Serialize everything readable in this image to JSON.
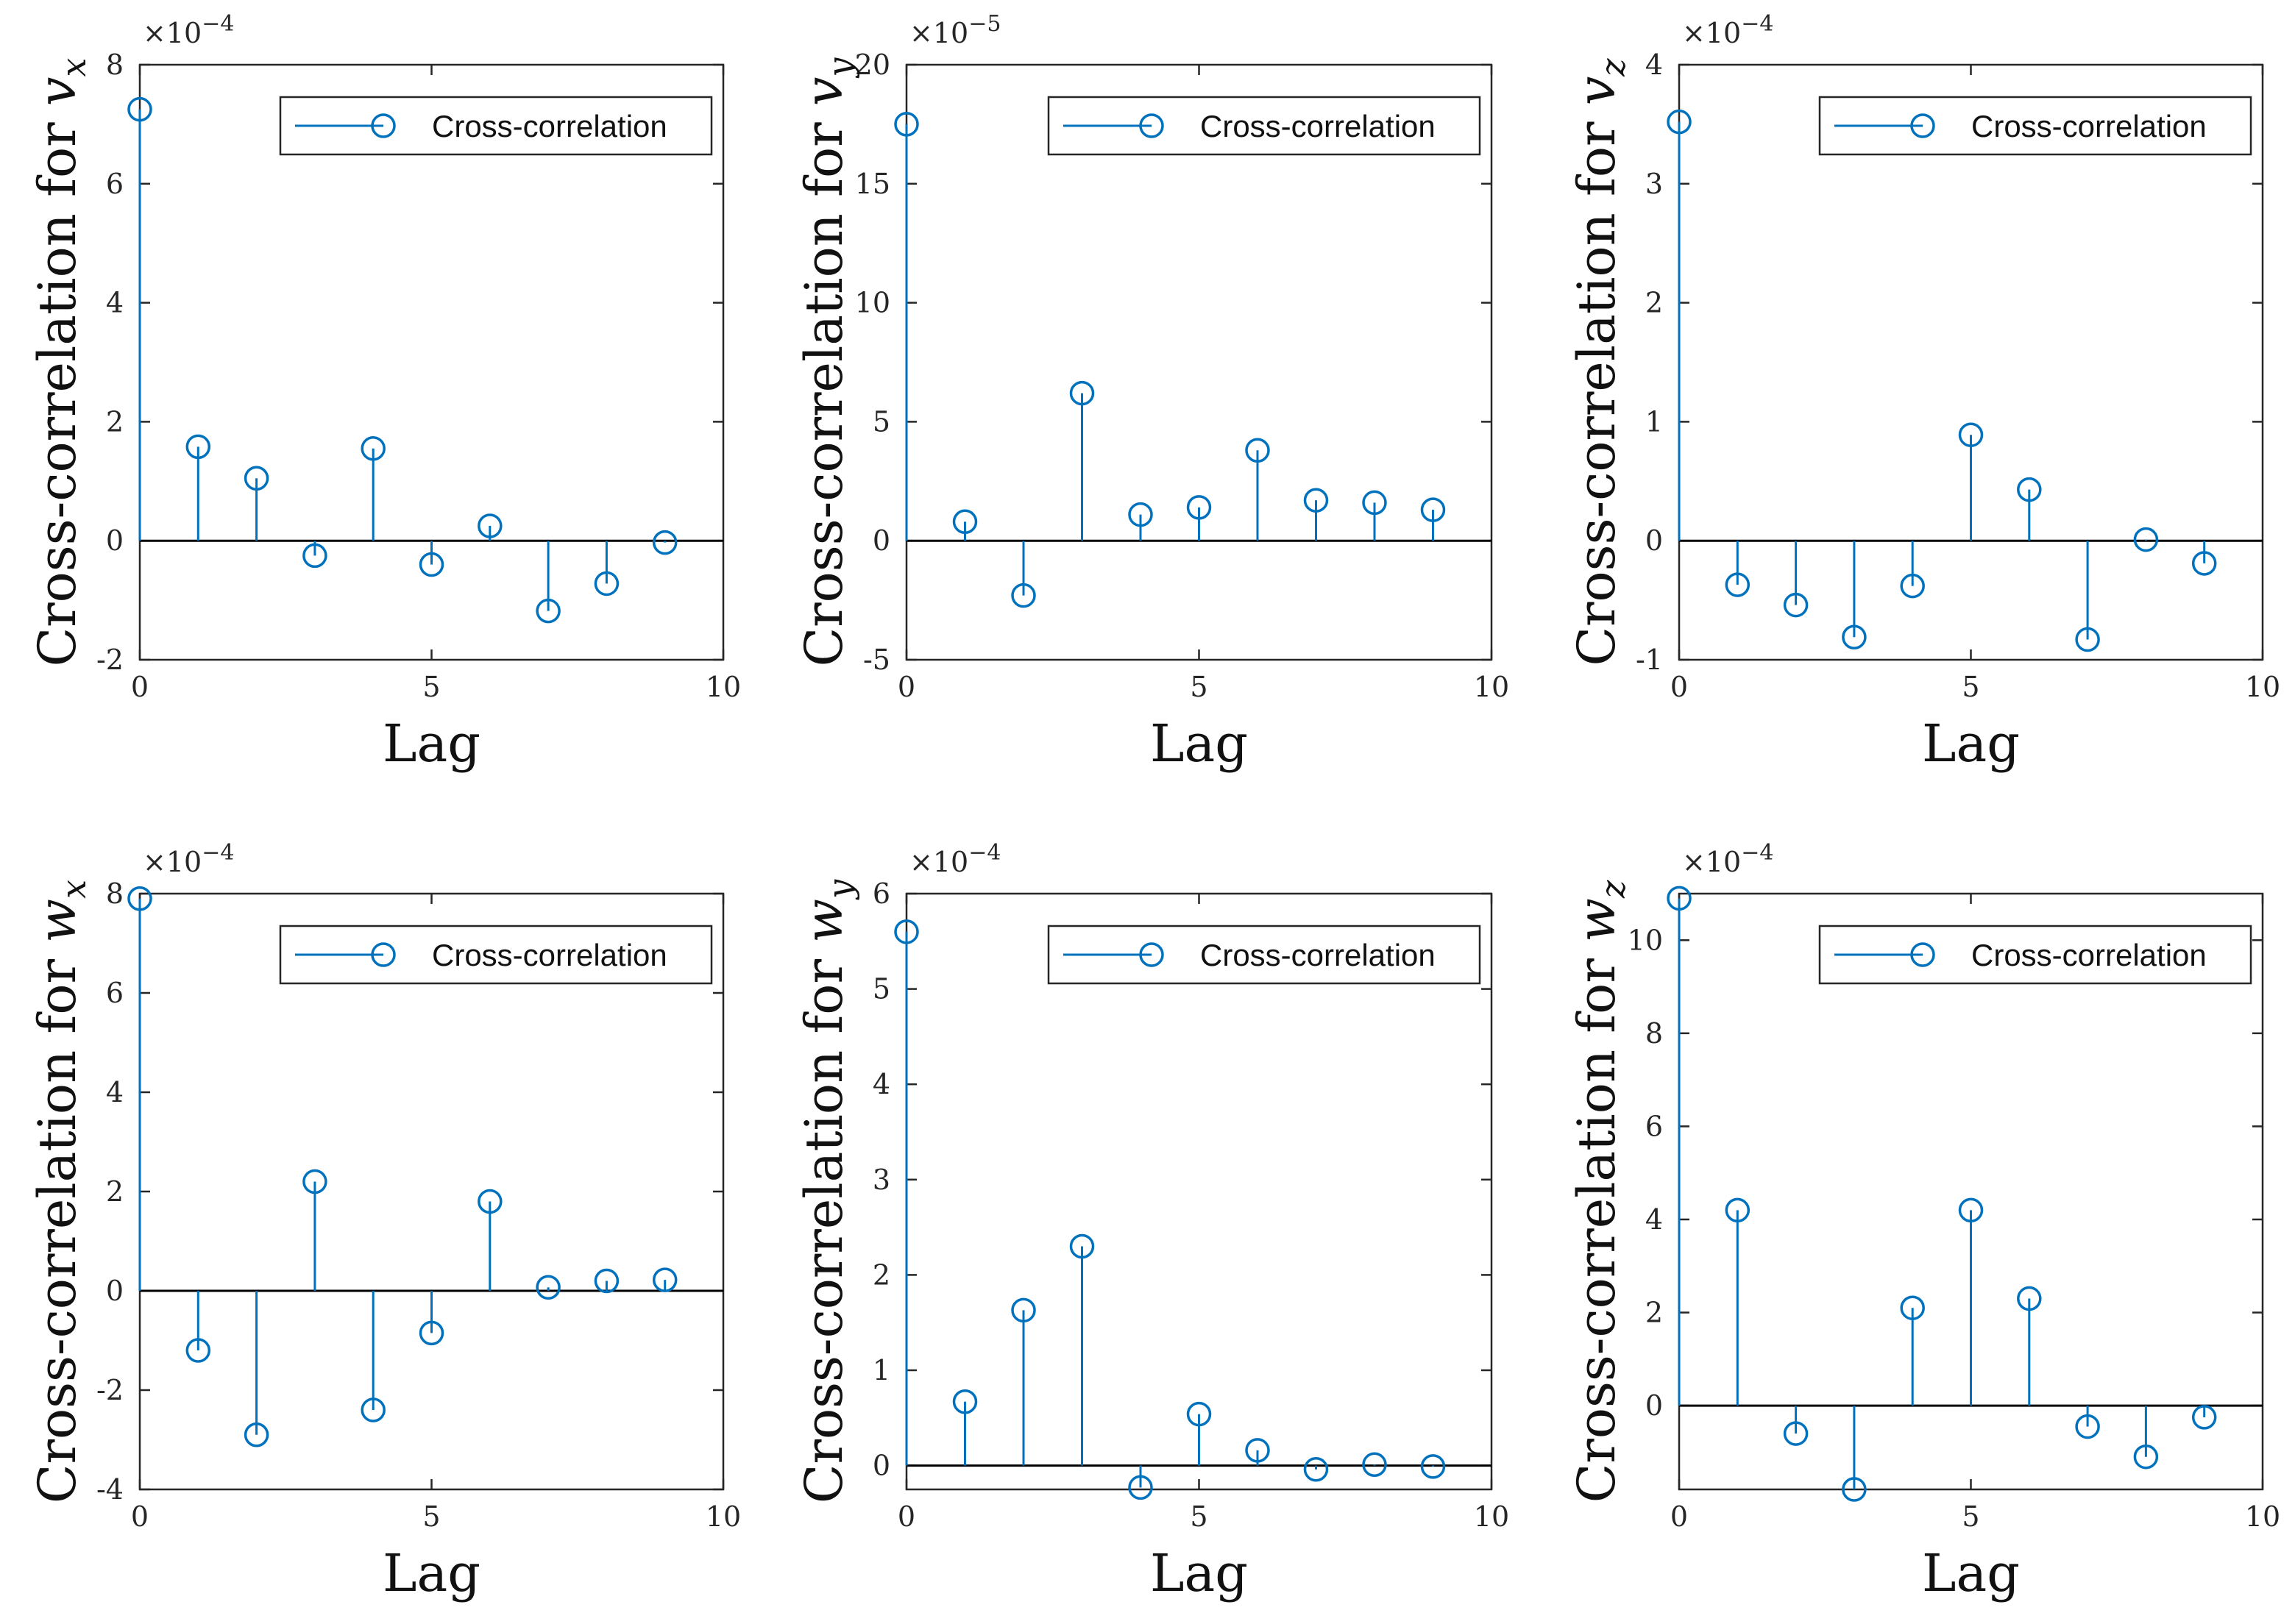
{
  "chart_data": [
    {
      "type": "stem",
      "ylabel_prefix": "Cross-correlation for ",
      "ylabel_var": "v",
      "ylabel_sub": "x",
      "xlabel": "Lag",
      "legend": "Cross-correlation",
      "exponent_base": "×10",
      "exponent_power": "−4",
      "xlim": [
        0,
        10
      ],
      "ylim": [
        -2,
        8
      ],
      "xticks": [
        0,
        5,
        10
      ],
      "yticks": [
        -2,
        0,
        2,
        4,
        6,
        8
      ],
      "ytick_labels": [
        "-2",
        "0",
        "2",
        "4",
        "6",
        "8"
      ],
      "x": [
        0,
        1,
        2,
        3,
        4,
        5,
        6,
        7,
        8,
        9
      ],
      "values": [
        7.25,
        1.58,
        1.05,
        -0.25,
        1.55,
        -0.4,
        0.25,
        -1.18,
        -0.72,
        -0.03
      ]
    },
    {
      "type": "stem",
      "ylabel_prefix": "Cross-correlation for ",
      "ylabel_var": "v",
      "ylabel_sub": "y",
      "xlabel": "Lag",
      "legend": "Cross-correlation",
      "exponent_base": "×10",
      "exponent_power": "−5",
      "xlim": [
        0,
        10
      ],
      "ylim": [
        -5,
        20
      ],
      "xticks": [
        0,
        5,
        10
      ],
      "yticks": [
        -5,
        0,
        5,
        10,
        15,
        20
      ],
      "ytick_labels": [
        "-5",
        "0",
        "5",
        "10",
        "15",
        "20"
      ],
      "x": [
        0,
        1,
        2,
        3,
        4,
        5,
        6,
        7,
        8,
        9
      ],
      "values": [
        17.5,
        0.8,
        -2.3,
        6.2,
        1.1,
        1.4,
        3.8,
        1.7,
        1.6,
        1.3
      ]
    },
    {
      "type": "stem",
      "ylabel_prefix": "Cross-correlation for ",
      "ylabel_var": "v",
      "ylabel_sub": "z",
      "xlabel": "Lag",
      "legend": "Cross-correlation",
      "exponent_base": "×10",
      "exponent_power": "−4",
      "xlim": [
        0,
        10
      ],
      "ylim": [
        -1,
        4
      ],
      "xticks": [
        0,
        5,
        10
      ],
      "yticks": [
        -1,
        0,
        1,
        2,
        3,
        4
      ],
      "ytick_labels": [
        "-1",
        "0",
        "1",
        "2",
        "3",
        "4"
      ],
      "x": [
        0,
        1,
        2,
        3,
        4,
        5,
        6,
        7,
        8,
        9
      ],
      "values": [
        3.52,
        -0.37,
        -0.54,
        -0.81,
        -0.38,
        0.89,
        0.43,
        -0.83,
        0.01,
        -0.19
      ]
    },
    {
      "type": "stem",
      "ylabel_prefix": "Cross-correlation for ",
      "ylabel_var": "w",
      "ylabel_sub": "x",
      "xlabel": "Lag",
      "legend": "Cross-correlation",
      "exponent_base": "×10",
      "exponent_power": "−4",
      "xlim": [
        0,
        10
      ],
      "ylim": [
        -4,
        8
      ],
      "xticks": [
        0,
        5,
        10
      ],
      "yticks": [
        -4,
        -2,
        0,
        2,
        4,
        6,
        8
      ],
      "ytick_labels": [
        "-4",
        "-2",
        "0",
        "2",
        "4",
        "6",
        "8"
      ],
      "x": [
        0,
        1,
        2,
        3,
        4,
        5,
        6,
        7,
        8,
        9
      ],
      "values": [
        7.9,
        -1.2,
        -2.9,
        2.2,
        -2.4,
        -0.85,
        1.8,
        0.07,
        0.2,
        0.22
      ]
    },
    {
      "type": "stem",
      "ylabel_prefix": "Cross-correlation for ",
      "ylabel_var": "w",
      "ylabel_sub": "y",
      "xlabel": "Lag",
      "legend": "Cross-correlation",
      "exponent_base": "×10",
      "exponent_power": "−4",
      "xlim": [
        0,
        10
      ],
      "ylim": [
        -0.25,
        6
      ],
      "xticks": [
        0,
        5,
        10
      ],
      "yticks": [
        0,
        1,
        2,
        3,
        4,
        5,
        6
      ],
      "ytick_labels": [
        "0",
        "1",
        "2",
        "3",
        "4",
        "5",
        "6"
      ],
      "x": [
        0,
        1,
        2,
        3,
        4,
        5,
        6,
        7,
        8,
        9
      ],
      "values": [
        5.6,
        0.67,
        1.63,
        2.3,
        -0.23,
        0.54,
        0.16,
        -0.04,
        0.01,
        -0.01
      ]
    },
    {
      "type": "stem",
      "ylabel_prefix": "Cross-correlation for ",
      "ylabel_var": "w",
      "ylabel_sub": "z",
      "xlabel": "Lag",
      "legend": "Cross-correlation",
      "exponent_base": "×10",
      "exponent_power": "−4",
      "xlim": [
        0,
        10
      ],
      "ylim": [
        -1.8,
        11
      ],
      "xticks": [
        0,
        5,
        10
      ],
      "yticks": [
        0,
        2,
        4,
        6,
        8,
        10
      ],
      "ytick_labels": [
        "0",
        "2",
        "4",
        "6",
        "8",
        "10"
      ],
      "x": [
        0,
        1,
        2,
        3,
        4,
        5,
        6,
        7,
        8,
        9
      ],
      "values": [
        10.9,
        4.2,
        -0.6,
        -1.8,
        2.1,
        4.2,
        2.3,
        -0.45,
        -1.1,
        -0.25
      ]
    }
  ],
  "colors": {
    "series": "#0072BD",
    "axis": "#262626",
    "baseline": "#000000"
  }
}
